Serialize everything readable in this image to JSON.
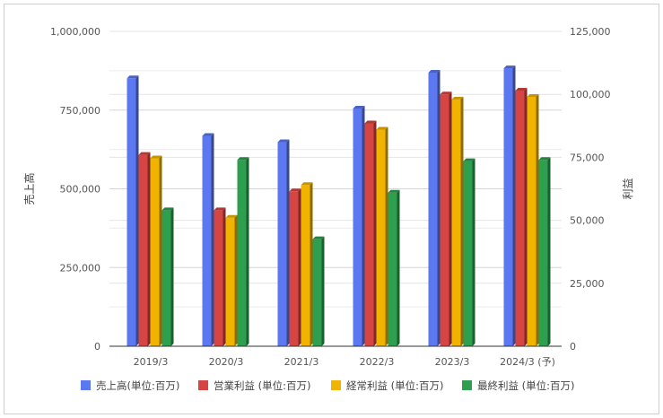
{
  "chart_data": {
    "type": "bar",
    "categories": [
      "2019/3",
      "2020/3",
      "2021/3",
      "2022/3",
      "2023/3",
      "2024/3 (予)"
    ],
    "left_axis": {
      "label": "売上高",
      "ylim": [
        0,
        1000000
      ],
      "ticks": [
        0,
        250000,
        500000,
        750000,
        1000000
      ],
      "tick_labels": [
        "0",
        "250,000",
        "500,000",
        "750,000",
        "1,000,000"
      ]
    },
    "right_axis": {
      "label": "利益",
      "ylim": [
        0,
        125000
      ],
      "ticks": [
        0,
        25000,
        50000,
        75000,
        100000,
        125000
      ],
      "tick_labels": [
        "0",
        "25,000",
        "50,000",
        "75,000",
        "100,000",
        "125,000"
      ]
    },
    "series": [
      {
        "name": "売上高(単位:百万)",
        "axis": "left",
        "color": "#5b78f0",
        "values": [
          851000,
          668000,
          648000,
          755000,
          869000,
          883000
        ]
      },
      {
        "name": "営業利益 (単位:百万)",
        "axis": "right",
        "color": "#d64541",
        "values": [
          76000,
          54000,
          61500,
          88500,
          100000,
          101500
        ]
      },
      {
        "name": "経常利益 (単位:百万)",
        "axis": "right",
        "color": "#f0b400",
        "values": [
          74600,
          51000,
          64000,
          86000,
          98000,
          99000
        ]
      },
      {
        "name": "最終利益 (単位:百万)",
        "axis": "right",
        "color": "#2e9e4f",
        "values": [
          54000,
          74000,
          42500,
          61000,
          73500,
          74000
        ]
      }
    ],
    "grid": true,
    "legend_position": "bottom"
  }
}
